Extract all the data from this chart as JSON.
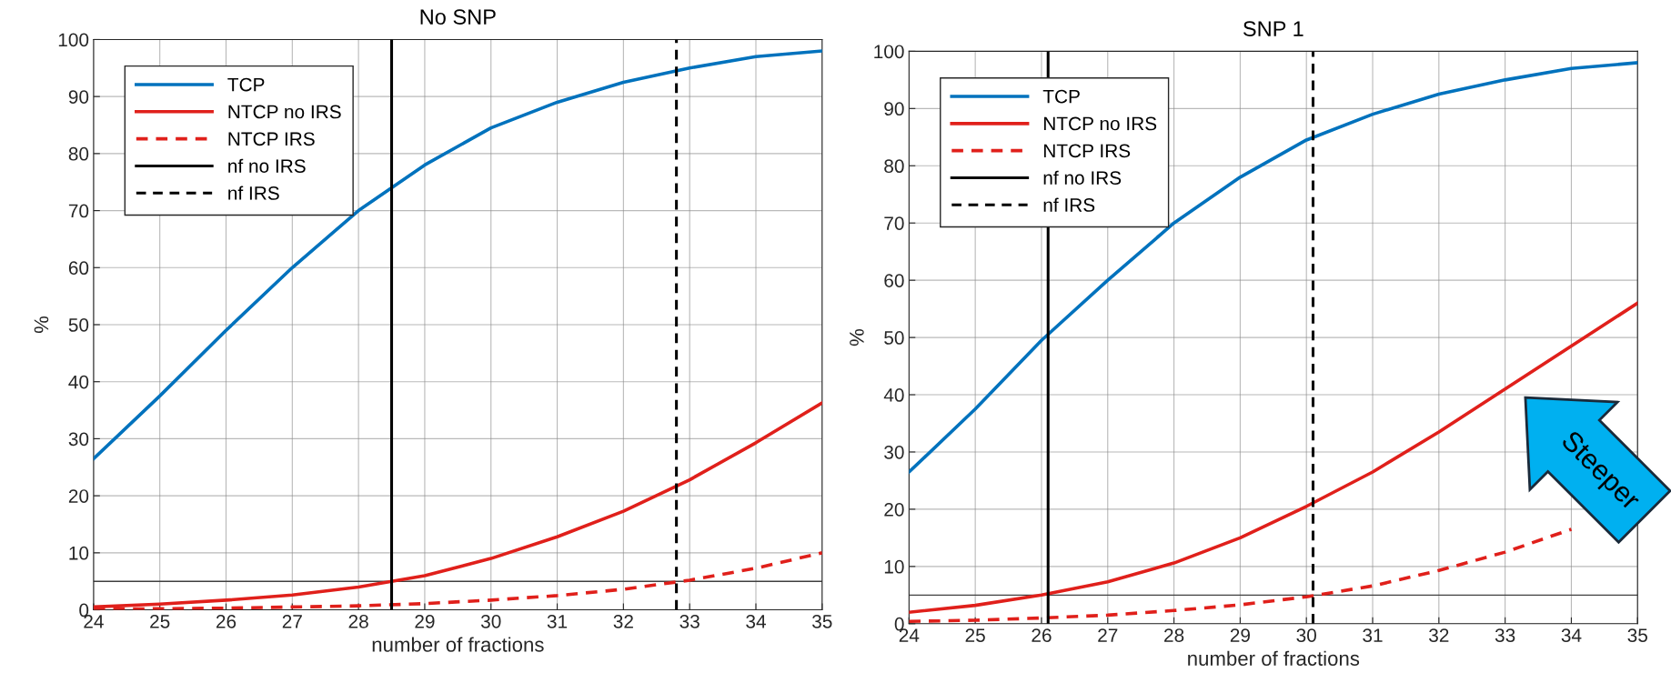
{
  "chart_data": [
    {
      "type": "line",
      "title": "No SNP",
      "xlabel": "number of fractions",
      "ylabel": "%",
      "x": [
        24,
        25,
        26,
        27,
        28,
        29,
        30,
        31,
        32,
        33,
        34,
        35
      ],
      "series": [
        {
          "name": "TCP",
          "color": "#0072bd",
          "line_style": "solid",
          "values": [
            26.5,
            37.5,
            49,
            60,
            70,
            78,
            84.5,
            89,
            92.5,
            95,
            97,
            98
          ]
        },
        {
          "name": "NTCP no IRS",
          "color": "#e0201b",
          "line_style": "solid",
          "values": [
            0.5,
            1,
            1.7,
            2.6,
            4,
            6,
            9,
            12.8,
            17.3,
            22.8,
            29.3,
            36.3
          ]
        },
        {
          "name": "NTCP IRS",
          "color": "#e0201b",
          "line_style": "dashed",
          "values": [
            0.1,
            0.2,
            0.3,
            0.5,
            0.7,
            1.1,
            1.7,
            2.5,
            3.6,
            5.2,
            7.3,
            10
          ]
        },
        {
          "name": "nf no IRS",
          "color": "#000000",
          "line_style": "solid",
          "x": [
            28.5,
            28.5
          ],
          "values": [
            0,
            100
          ]
        },
        {
          "name": "nf IRS",
          "color": "#000000",
          "line_style": "dashed",
          "x": [
            32.8,
            32.8
          ],
          "values": [
            0,
            100
          ]
        }
      ],
      "ref_lines": [
        {
          "axis": "y",
          "value": 5,
          "color": "#404040",
          "line_style": "solid"
        }
      ],
      "xlim": [
        24,
        35
      ],
      "xticks": [
        24,
        25,
        26,
        27,
        28,
        29,
        30,
        31,
        32,
        33,
        34,
        35
      ],
      "ylim": [
        0,
        100
      ],
      "yticks": [
        0,
        10,
        20,
        30,
        40,
        50,
        60,
        70,
        80,
        90,
        100
      ],
      "grid": true,
      "legend": "top left",
      "marker": "none"
    },
    {
      "type": "line",
      "title": "SNP 1",
      "xlabel": "number of fractions",
      "ylabel": "%",
      "x": [
        24,
        25,
        26,
        27,
        28,
        29,
        30,
        31,
        32,
        33,
        34,
        35
      ],
      "series": [
        {
          "name": "TCP",
          "color": "#0072bd",
          "line_style": "solid",
          "values": [
            26.5,
            37.5,
            49.5,
            60,
            70,
            78,
            84.5,
            89,
            92.5,
            95,
            97,
            98
          ]
        },
        {
          "name": "NTCP no IRS",
          "color": "#e0201b",
          "line_style": "solid",
          "values": [
            2,
            3.2,
            5,
            7.3,
            10.6,
            15,
            20.5,
            26.5,
            33.5,
            41,
            48.5,
            56
          ]
        },
        {
          "name": "NTCP IRS",
          "color": "#e0201b",
          "line_style": "dashed",
          "values": [
            0.4,
            0.6,
            1,
            1.5,
            2.3,
            3.3,
            4.7,
            6.6,
            9.3,
            12.5,
            16.5,
            null
          ]
        },
        {
          "name": "nf no IRS",
          "color": "#000000",
          "line_style": "solid",
          "x": [
            26.1,
            26.1
          ],
          "values": [
            0,
            100
          ]
        },
        {
          "name": "nf IRS",
          "color": "#000000",
          "line_style": "dashed",
          "x": [
            30.1,
            30.1
          ],
          "values": [
            0,
            100
          ]
        }
      ],
      "ref_lines": [
        {
          "axis": "y",
          "value": 5,
          "color": "#404040",
          "line_style": "solid"
        }
      ],
      "annotations": [
        "Steeper"
      ],
      "xlim": [
        24,
        35
      ],
      "xticks": [
        24,
        25,
        26,
        27,
        28,
        29,
        30,
        31,
        32,
        33,
        34,
        35
      ],
      "ylim": [
        0,
        100
      ],
      "yticks": [
        0,
        10,
        20,
        30,
        40,
        50,
        60,
        70,
        80,
        90,
        100
      ],
      "grid": true,
      "legend": "top left",
      "marker": "none"
    }
  ]
}
